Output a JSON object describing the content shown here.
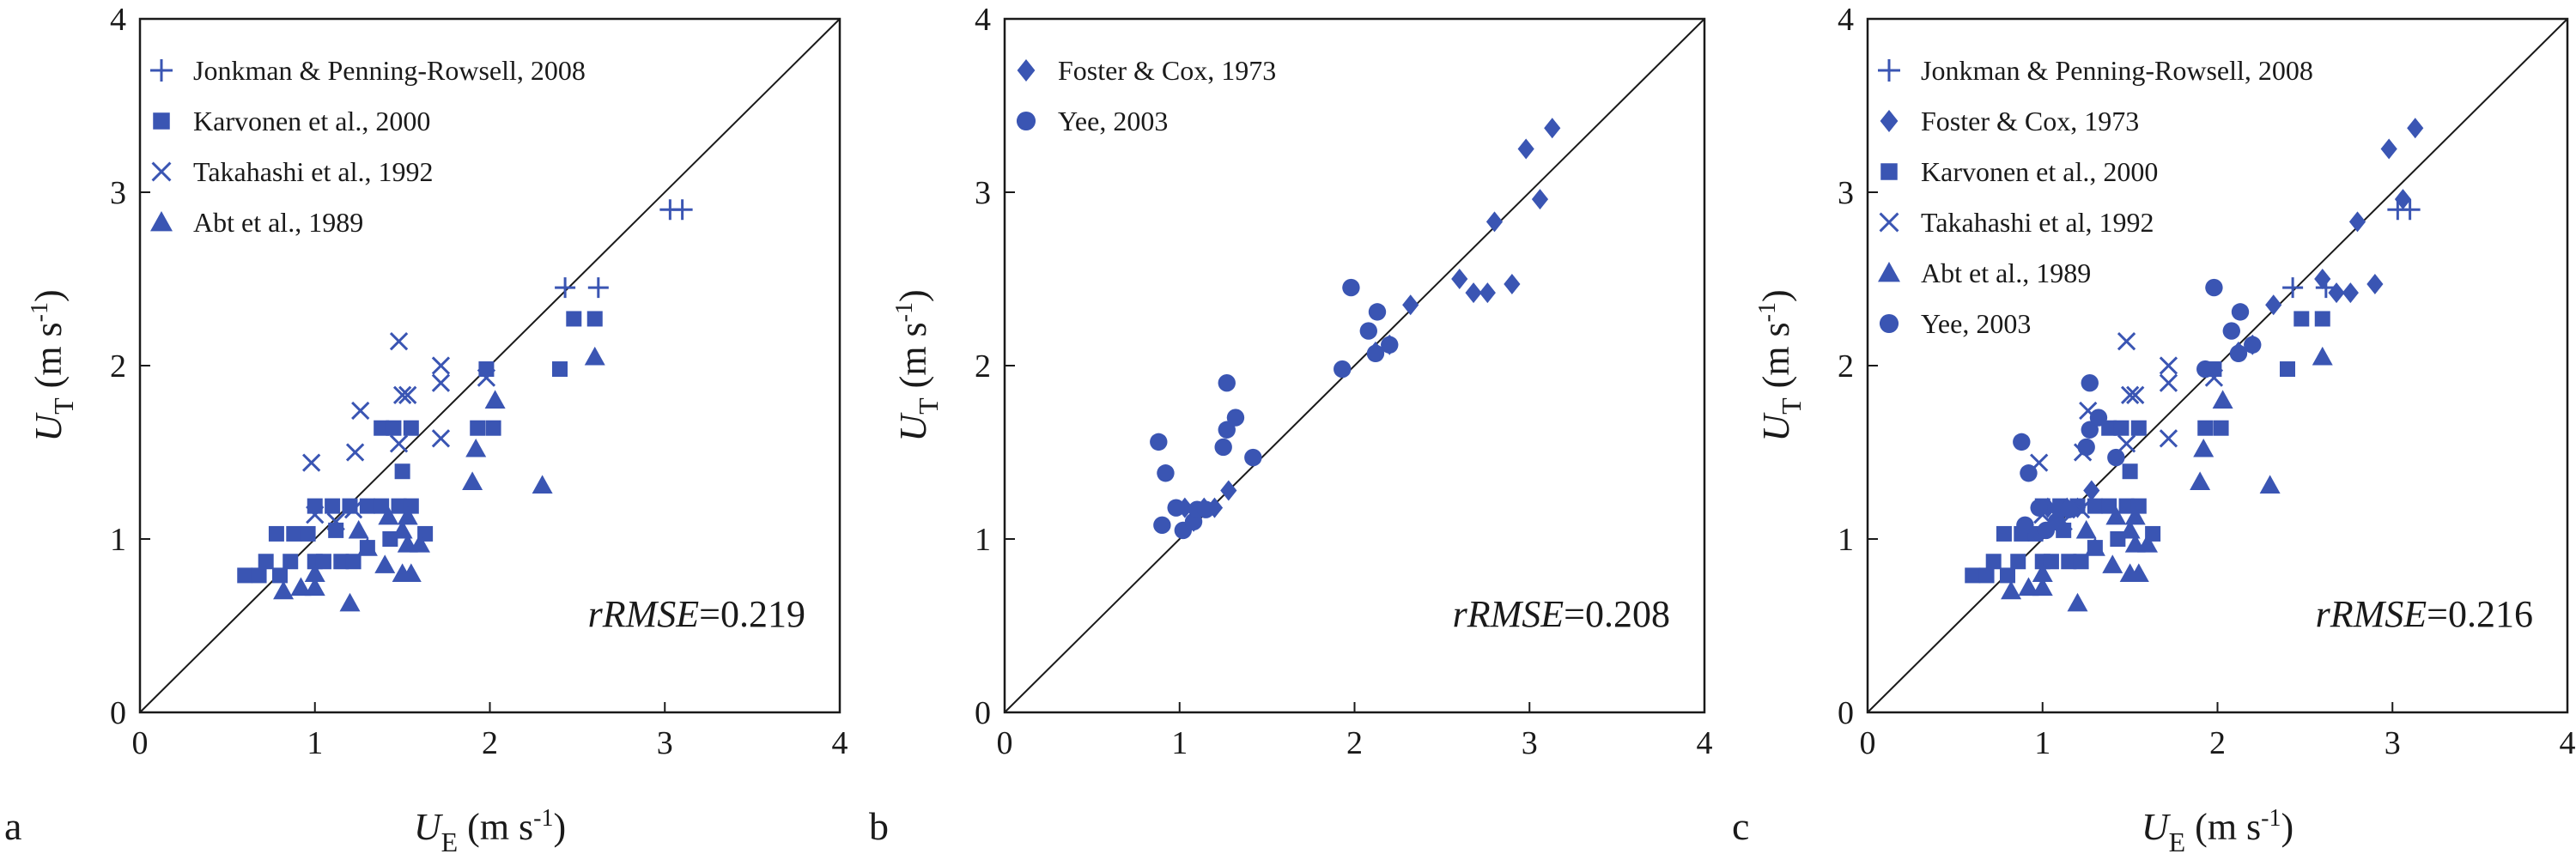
{
  "figure": {
    "color": "#3a55b3"
  },
  "chart_data": [
    {
      "panel_label": "a",
      "type": "scatter",
      "xlim": [
        0,
        4
      ],
      "ylim": [
        0,
        4
      ],
      "ticks": [
        "0",
        "1",
        "2",
        "3",
        "4"
      ],
      "xlabel": {
        "sym": "U",
        "sub": "E",
        "unit": " (m s",
        "exp": "-1",
        "close": ")"
      },
      "ylabel": {
        "sym": "U",
        "sub": "T",
        "unit": " (m s",
        "exp": "-1",
        "close": ")"
      },
      "reference_line": "1:1",
      "metric": {
        "name": "rRMSE",
        "value": "=0.219"
      },
      "legend_position": "top-left",
      "series": [
        {
          "name": "Jonkman & Penning-Rowsell, 2008",
          "marker": "plus",
          "points": [
            [
              2.43,
              2.45
            ],
            [
              2.62,
              2.45
            ],
            [
              3.03,
              2.9
            ],
            [
              3.1,
              2.9
            ]
          ]
        },
        {
          "name": "Karvonen et al., 2000",
          "marker": "square",
          "points": [
            [
              0.6,
              0.79
            ],
            [
              0.68,
              0.79
            ],
            [
              0.72,
              0.87
            ],
            [
              0.8,
              0.79
            ],
            [
              0.78,
              1.03
            ],
            [
              0.88,
              1.03
            ],
            [
              0.86,
              0.87
            ],
            [
              0.96,
              1.03
            ],
            [
              1.0,
              0.87
            ],
            [
              1.0,
              1.19
            ],
            [
              1.1,
              1.19
            ],
            [
              1.05,
              0.87
            ],
            [
              1.15,
              0.87
            ],
            [
              1.2,
              1.19
            ],
            [
              1.22,
              0.87
            ],
            [
              1.3,
              1.19
            ],
            [
              1.3,
              0.95
            ],
            [
              1.38,
              1.19
            ],
            [
              1.43,
              1.0
            ],
            [
              1.48,
              1.19
            ],
            [
              1.55,
              1.19
            ],
            [
              1.38,
              1.64
            ],
            [
              1.45,
              1.64
            ],
            [
              1.55,
              1.64
            ],
            [
              1.5,
              1.39
            ],
            [
              1.63,
              1.03
            ],
            [
              1.93,
              1.64
            ],
            [
              2.02,
              1.64
            ],
            [
              1.98,
              1.98
            ],
            [
              2.4,
              1.98
            ],
            [
              2.48,
              2.27
            ],
            [
              2.6,
              2.27
            ],
            [
              1.12,
              1.05
            ]
          ]
        },
        {
          "name": "Takahashi et al., 1992",
          "marker": "cross",
          "points": [
            [
              0.98,
              1.44
            ],
            [
              1.0,
              1.14
            ],
            [
              1.12,
              1.1
            ],
            [
              1.23,
              1.5
            ],
            [
              1.26,
              1.74
            ],
            [
              1.22,
              1.17
            ],
            [
              1.48,
              2.14
            ],
            [
              1.5,
              1.83
            ],
            [
              1.53,
              1.83
            ],
            [
              1.48,
              1.55
            ],
            [
              1.72,
              1.9
            ],
            [
              1.72,
              2.0
            ],
            [
              1.72,
              1.58
            ],
            [
              1.98,
              1.93
            ]
          ]
        },
        {
          "name": "Abt et al., 1989",
          "marker": "triangle",
          "points": [
            [
              0.82,
              0.7
            ],
            [
              0.92,
              0.72
            ],
            [
              1.0,
              0.72
            ],
            [
              1.0,
              0.8
            ],
            [
              1.2,
              0.63
            ],
            [
              1.4,
              0.85
            ],
            [
              1.5,
              0.8
            ],
            [
              1.55,
              0.8
            ],
            [
              1.42,
              1.13
            ],
            [
              1.53,
              1.13
            ],
            [
              1.53,
              0.97
            ],
            [
              1.6,
              0.97
            ],
            [
              1.5,
              1.05
            ],
            [
              1.9,
              1.33
            ],
            [
              1.92,
              1.52
            ],
            [
              2.03,
              1.8
            ],
            [
              2.3,
              1.31
            ],
            [
              2.6,
              2.05
            ],
            [
              1.3,
              0.95
            ],
            [
              1.25,
              1.05
            ]
          ]
        }
      ]
    },
    {
      "panel_label": "b",
      "type": "scatter",
      "xlim": [
        0,
        4
      ],
      "ylim": [
        0,
        4
      ],
      "ticks": [
        "0",
        "1",
        "2",
        "3",
        "4"
      ],
      "xlabel": {
        "sym": "",
        "sub": "",
        "unit": "",
        "exp": "",
        "close": ""
      },
      "ylabel": {
        "sym": "U",
        "sub": "T",
        "unit": " (m s",
        "exp": "-1",
        "close": ")"
      },
      "reference_line": "1:1",
      "metric": {
        "name": "rRMSE",
        "value": "=0.208"
      },
      "legend_position": "top-left",
      "series": [
        {
          "name": "Foster & Cox, 1973",
          "marker": "diamond",
          "points": [
            [
              1.03,
              1.18
            ],
            [
              1.08,
              1.1
            ],
            [
              1.14,
              1.18
            ],
            [
              1.2,
              1.18
            ],
            [
              1.28,
              1.28
            ],
            [
              2.12,
              2.08
            ],
            [
              2.2,
              2.12
            ],
            [
              2.32,
              2.35
            ],
            [
              2.6,
              2.5
            ],
            [
              2.68,
              2.42
            ],
            [
              2.76,
              2.42
            ],
            [
              2.8,
              2.83
            ],
            [
              2.9,
              2.47
            ],
            [
              2.98,
              3.25
            ],
            [
              3.06,
              2.96
            ],
            [
              3.13,
              3.37
            ]
          ]
        },
        {
          "name": "Yee, 2003",
          "marker": "circle",
          "points": [
            [
              0.88,
              1.56
            ],
            [
              0.92,
              1.38
            ],
            [
              0.9,
              1.08
            ],
            [
              0.98,
              1.18
            ],
            [
              1.02,
              1.05
            ],
            [
              1.08,
              1.1
            ],
            [
              1.1,
              1.17
            ],
            [
              1.15,
              1.17
            ],
            [
              1.25,
              1.53
            ],
            [
              1.27,
              1.63
            ],
            [
              1.27,
              1.9
            ],
            [
              1.32,
              1.7
            ],
            [
              1.42,
              1.47
            ],
            [
              1.93,
              1.98
            ],
            [
              1.98,
              2.45
            ],
            [
              2.08,
              2.2
            ],
            [
              2.12,
              2.07
            ],
            [
              2.13,
              2.31
            ],
            [
              2.2,
              2.12
            ]
          ]
        }
      ]
    },
    {
      "panel_label": "c",
      "type": "scatter",
      "xlim": [
        0,
        4
      ],
      "ylim": [
        0,
        4
      ],
      "ticks": [
        "0",
        "1",
        "2",
        "3",
        "4"
      ],
      "xlabel": {
        "sym": "U",
        "sub": "E",
        "unit": " (m s",
        "exp": "-1",
        "close": ")"
      },
      "ylabel": {
        "sym": "U",
        "sub": "T",
        "unit": " (m s",
        "exp": "-1",
        "close": ")"
      },
      "reference_line": "1:1",
      "metric": {
        "name": "rRMSE",
        "value": "=0.216"
      },
      "legend_position": "top-left",
      "series": [
        {
          "name": "Jonkman & Penning-Rowsell, 2008",
          "marker": "plus",
          "points": [
            [
              2.43,
              2.45
            ],
            [
              2.62,
              2.45
            ],
            [
              3.03,
              2.9
            ],
            [
              3.1,
              2.9
            ]
          ]
        },
        {
          "name": "Foster & Cox, 1973",
          "marker": "diamond",
          "points": [
            [
              1.03,
              1.18
            ],
            [
              1.08,
              1.1
            ],
            [
              1.14,
              1.18
            ],
            [
              1.2,
              1.18
            ],
            [
              1.28,
              1.28
            ],
            [
              2.12,
              2.08
            ],
            [
              2.2,
              2.12
            ],
            [
              2.32,
              2.35
            ],
            [
              2.6,
              2.5
            ],
            [
              2.68,
              2.42
            ],
            [
              2.76,
              2.42
            ],
            [
              2.8,
              2.83
            ],
            [
              2.9,
              2.47
            ],
            [
              2.98,
              3.25
            ],
            [
              3.06,
              2.96
            ],
            [
              3.13,
              3.37
            ]
          ]
        },
        {
          "name": "Karvonen et al., 2000",
          "marker": "square",
          "points": [
            [
              0.6,
              0.79
            ],
            [
              0.68,
              0.79
            ],
            [
              0.72,
              0.87
            ],
            [
              0.8,
              0.79
            ],
            [
              0.78,
              1.03
            ],
            [
              0.88,
              1.03
            ],
            [
              0.86,
              0.87
            ],
            [
              0.96,
              1.03
            ],
            [
              1.0,
              0.87
            ],
            [
              1.0,
              1.19
            ],
            [
              1.1,
              1.19
            ],
            [
              1.05,
              0.87
            ],
            [
              1.15,
              0.87
            ],
            [
              1.2,
              1.19
            ],
            [
              1.22,
              0.87
            ],
            [
              1.3,
              1.19
            ],
            [
              1.3,
              0.95
            ],
            [
              1.38,
              1.19
            ],
            [
              1.43,
              1.0
            ],
            [
              1.48,
              1.19
            ],
            [
              1.55,
              1.19
            ],
            [
              1.38,
              1.64
            ],
            [
              1.45,
              1.64
            ],
            [
              1.55,
              1.64
            ],
            [
              1.5,
              1.39
            ],
            [
              1.63,
              1.03
            ],
            [
              1.93,
              1.64
            ],
            [
              2.02,
              1.64
            ],
            [
              1.98,
              1.98
            ],
            [
              2.4,
              1.98
            ],
            [
              2.48,
              2.27
            ],
            [
              2.6,
              2.27
            ],
            [
              1.12,
              1.05
            ]
          ]
        },
        {
          "name": "Takahashi et al, 1992",
          "marker": "cross",
          "points": [
            [
              0.98,
              1.44
            ],
            [
              1.0,
              1.14
            ],
            [
              1.12,
              1.1
            ],
            [
              1.23,
              1.5
            ],
            [
              1.26,
              1.74
            ],
            [
              1.22,
              1.17
            ],
            [
              1.48,
              2.14
            ],
            [
              1.5,
              1.83
            ],
            [
              1.53,
              1.83
            ],
            [
              1.48,
              1.55
            ],
            [
              1.72,
              1.9
            ],
            [
              1.72,
              2.0
            ],
            [
              1.72,
              1.58
            ],
            [
              1.98,
              1.93
            ]
          ]
        },
        {
          "name": "Abt et al., 1989",
          "marker": "triangle",
          "points": [
            [
              0.82,
              0.7
            ],
            [
              0.92,
              0.72
            ],
            [
              1.0,
              0.72
            ],
            [
              1.0,
              0.8
            ],
            [
              1.2,
              0.63
            ],
            [
              1.4,
              0.85
            ],
            [
              1.5,
              0.8
            ],
            [
              1.55,
              0.8
            ],
            [
              1.42,
              1.13
            ],
            [
              1.53,
              1.13
            ],
            [
              1.53,
              0.97
            ],
            [
              1.6,
              0.97
            ],
            [
              1.5,
              1.05
            ],
            [
              1.9,
              1.33
            ],
            [
              1.92,
              1.52
            ],
            [
              2.03,
              1.8
            ],
            [
              2.3,
              1.31
            ],
            [
              2.6,
              2.05
            ],
            [
              1.3,
              0.95
            ],
            [
              1.25,
              1.05
            ]
          ]
        },
        {
          "name": "Yee, 2003",
          "marker": "circle",
          "points": [
            [
              0.88,
              1.56
            ],
            [
              0.92,
              1.38
            ],
            [
              0.9,
              1.08
            ],
            [
              0.98,
              1.18
            ],
            [
              1.02,
              1.05
            ],
            [
              1.08,
              1.1
            ],
            [
              1.1,
              1.17
            ],
            [
              1.15,
              1.17
            ],
            [
              1.25,
              1.53
            ],
            [
              1.27,
              1.63
            ],
            [
              1.27,
              1.9
            ],
            [
              1.32,
              1.7
            ],
            [
              1.42,
              1.47
            ],
            [
              1.93,
              1.98
            ],
            [
              1.98,
              2.45
            ],
            [
              2.08,
              2.2
            ],
            [
              2.12,
              2.07
            ],
            [
              2.13,
              2.31
            ],
            [
              2.2,
              2.12
            ]
          ]
        }
      ]
    }
  ]
}
